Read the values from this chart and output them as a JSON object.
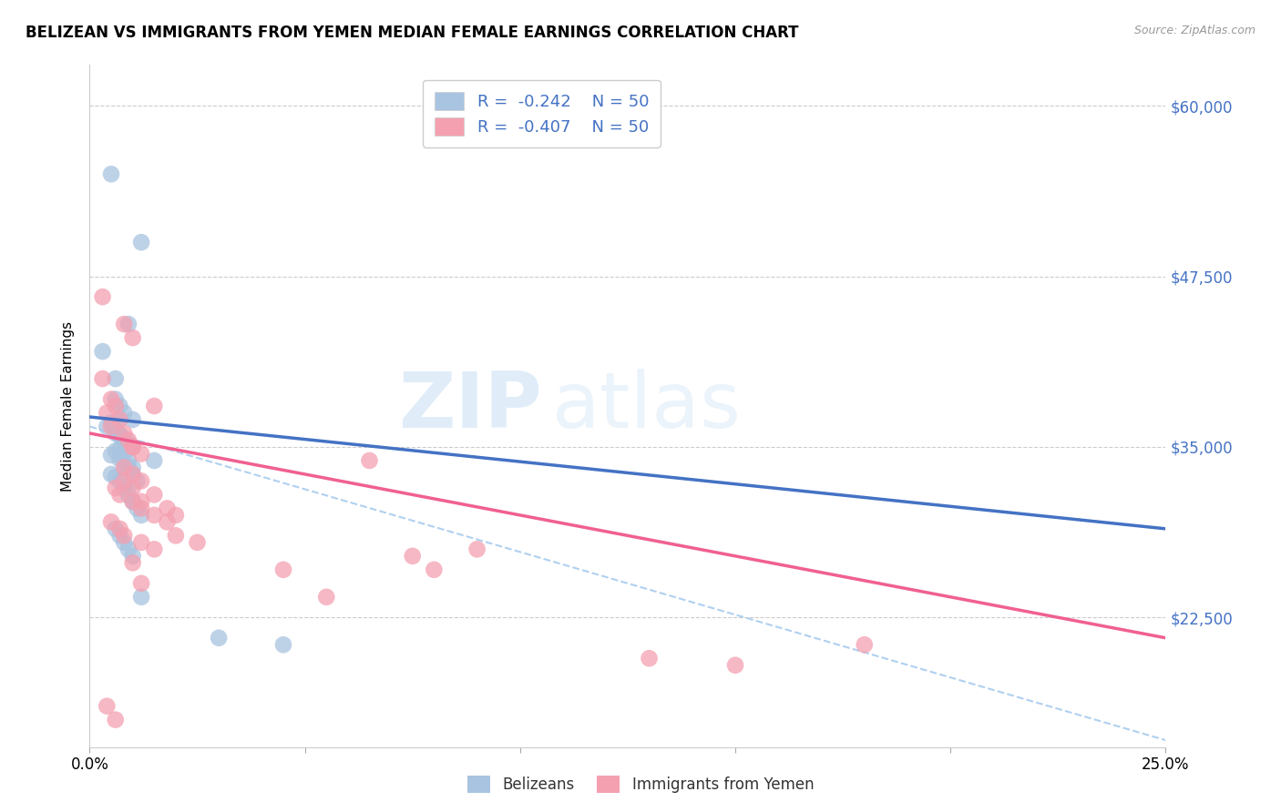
{
  "title": "BELIZEAN VS IMMIGRANTS FROM YEMEN MEDIAN FEMALE EARNINGS CORRELATION CHART",
  "source": "Source: ZipAtlas.com",
  "ylabel": "Median Female Earnings",
  "xlim": [
    0.0,
    0.25
  ],
  "ylim": [
    13000,
    63000
  ],
  "xticks": [
    0.0,
    0.05,
    0.1,
    0.15,
    0.2,
    0.25
  ],
  "xticklabels": [
    "0.0%",
    "",
    "",
    "",
    "",
    "25.0%"
  ],
  "ytick_labels": [
    "$22,500",
    "$35,000",
    "$47,500",
    "$60,000"
  ],
  "ytick_values": [
    22500,
    35000,
    47500,
    60000
  ],
  "blue_color": "#a8c4e0",
  "pink_color": "#f4a0b0",
  "trend_blue": "#4472c4",
  "trend_pink": "#f06090",
  "trend_dashed": "#b0d0f0",
  "watermark_zip": "ZIP",
  "watermark_atlas": "atlas",
  "blue_scatter_x": [
    0.005,
    0.012,
    0.009,
    0.003,
    0.006,
    0.006,
    0.007,
    0.008,
    0.007,
    0.005,
    0.004,
    0.006,
    0.007,
    0.008,
    0.009,
    0.01,
    0.007,
    0.008,
    0.009,
    0.01,
    0.005,
    0.006,
    0.007,
    0.008,
    0.009,
    0.01,
    0.011,
    0.012,
    0.006,
    0.007,
    0.008,
    0.009,
    0.01,
    0.006,
    0.005,
    0.007,
    0.008,
    0.009,
    0.01,
    0.011,
    0.015,
    0.01,
    0.006,
    0.007,
    0.008,
    0.009,
    0.01,
    0.012,
    0.03,
    0.045
  ],
  "blue_scatter_y": [
    55000,
    50000,
    44000,
    42000,
    40000,
    38500,
    38000,
    37500,
    37000,
    36800,
    36500,
    36000,
    35800,
    35500,
    35200,
    35000,
    34800,
    34500,
    34000,
    33500,
    33000,
    32800,
    32500,
    32000,
    31500,
    31000,
    30500,
    30000,
    36200,
    35900,
    35600,
    35300,
    35000,
    34700,
    34400,
    34100,
    33800,
    33500,
    33000,
    32500,
    34000,
    37000,
    29000,
    28500,
    28000,
    27500,
    27000,
    24000,
    21000,
    20500
  ],
  "pink_scatter_x": [
    0.003,
    0.008,
    0.01,
    0.003,
    0.005,
    0.006,
    0.004,
    0.007,
    0.005,
    0.008,
    0.009,
    0.01,
    0.012,
    0.008,
    0.01,
    0.012,
    0.015,
    0.01,
    0.015,
    0.012,
    0.018,
    0.02,
    0.01,
    0.005,
    0.007,
    0.008,
    0.012,
    0.015,
    0.006,
    0.007,
    0.01,
    0.012,
    0.015,
    0.018,
    0.02,
    0.025,
    0.065,
    0.075,
    0.08,
    0.13,
    0.004,
    0.006,
    0.008,
    0.01,
    0.012,
    0.045,
    0.055,
    0.09,
    0.15,
    0.18
  ],
  "pink_scatter_y": [
    46000,
    44000,
    43000,
    40000,
    38500,
    38000,
    37500,
    37000,
    36500,
    36000,
    35500,
    35000,
    34500,
    33500,
    33000,
    32500,
    38000,
    32000,
    31500,
    31000,
    30500,
    30000,
    35000,
    29500,
    29000,
    28500,
    28000,
    27500,
    32000,
    31500,
    31000,
    30500,
    30000,
    29500,
    28500,
    28000,
    34000,
    27000,
    26000,
    19500,
    16000,
    15000,
    32500,
    26500,
    25000,
    26000,
    24000,
    27500,
    19000,
    20500
  ],
  "blue_trend_x0": 0.0,
  "blue_trend_y0": 37200,
  "blue_trend_x1": 0.25,
  "blue_trend_y1": 29000,
  "pink_trend_x0": 0.0,
  "pink_trend_y0": 36000,
  "pink_trend_x1": 0.25,
  "pink_trend_y1": 21000,
  "dash_trend_x0": 0.0,
  "dash_trend_y0": 36500,
  "dash_trend_x1": 0.25,
  "dash_trend_y1": 13500
}
